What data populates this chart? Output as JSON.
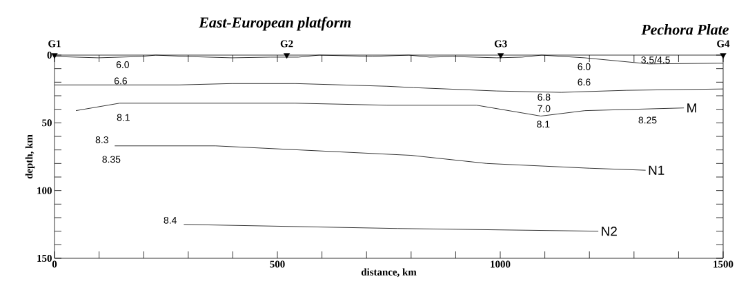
{
  "chart_data": {
    "type": "line",
    "title": "East-European platform",
    "xlabel": "distance, km",
    "ylabel": "depth, km",
    "xlim": [
      0,
      1500
    ],
    "ylim": [
      150,
      0
    ],
    "xticks": [
      0,
      {
        "value": 100,
        "label": null
      },
      {
        "value": 200,
        "label": null
      },
      {
        "value": 300,
        "label": null
      },
      {
        "value": 400,
        "label": null
      },
      500,
      {
        "value": 600,
        "label": null
      },
      {
        "value": 700,
        "label": null
      },
      {
        "value": 800,
        "label": null
      },
      {
        "value": 900,
        "label": null
      },
      1000,
      {
        "value": 1100,
        "label": null
      },
      {
        "value": 1200,
        "label": null
      },
      {
        "value": 1300,
        "label": null
      },
      {
        "value": 1400,
        "label": null
      },
      1500
    ],
    "yticks": [
      0,
      {
        "value": 10,
        "label": null
      },
      {
        "value": 20,
        "label": null
      },
      {
        "value": 30,
        "label": null
      },
      {
        "value": 40,
        "label": null
      },
      50,
      {
        "value": 60,
        "label": null
      },
      {
        "value": 70,
        "label": null
      },
      {
        "value": 80,
        "label": null
      },
      {
        "value": 90,
        "label": null
      },
      100,
      {
        "value": 110,
        "label": null
      },
      {
        "value": 120,
        "label": null
      },
      {
        "value": 130,
        "label": null
      },
      {
        "value": 140,
        "label": null
      },
      150
    ],
    "series": [
      {
        "color": "#000000",
        "x": [
          0,
          98,
          196,
          227,
          294,
          398,
          485,
          547,
          594,
          713,
          795,
          842,
          893,
          992,
          1049,
          1093,
          1189,
          1333,
          1488,
          1500
        ],
        "values": [
          1,
          2,
          1,
          0,
          1,
          2,
          1.5,
          1.5,
          0,
          1,
          0,
          1.5,
          1,
          2,
          1.5,
          0,
          2,
          6.5,
          6,
          6
        ]
      },
      {
        "color": "#000000",
        "x": [
          0,
          280,
          398,
          540,
          746,
          806,
          992,
          1137,
          1283,
          1500
        ],
        "values": [
          22,
          22,
          21,
          21,
          23,
          24,
          26.5,
          27.5,
          26,
          25
        ]
      },
      {
        "name": "M",
        "color": "#000000",
        "x": [
          48,
          146,
          540,
          746,
          947,
          1091,
          1190,
          1412
        ],
        "values": [
          41,
          35.5,
          35.5,
          37,
          37,
          45,
          41,
          39
        ]
      },
      {
        "name": "N1",
        "color": "#000000",
        "x": [
          135,
          361,
          800,
          970,
          1200,
          1326
        ],
        "values": [
          67,
          67,
          74,
          80,
          83.5,
          85
        ]
      },
      {
        "name": "N2",
        "color": "#000000",
        "x": [
          290,
          770,
          1220
        ],
        "values": [
          125,
          128,
          130
        ]
      },
      {
        "type": "scatter",
        "marker": "triangle",
        "color": "#000000",
        "x": [
          0,
          521,
          1001,
          1500
        ],
        "values": [
          0,
          0,
          0,
          0
        ],
        "value_labels": [
          "G1",
          "G2",
          "G3",
          "G4"
        ]
      }
    ],
    "annotations": [
      "Pechora Plate",
      "6.0",
      "6.6",
      "8.1",
      "8.3",
      "8.35",
      "8.4",
      "6.0",
      "3.5/4.5",
      "6.6",
      "6.8",
      "7.0",
      "8.1",
      "8.25"
    ]
  }
}
